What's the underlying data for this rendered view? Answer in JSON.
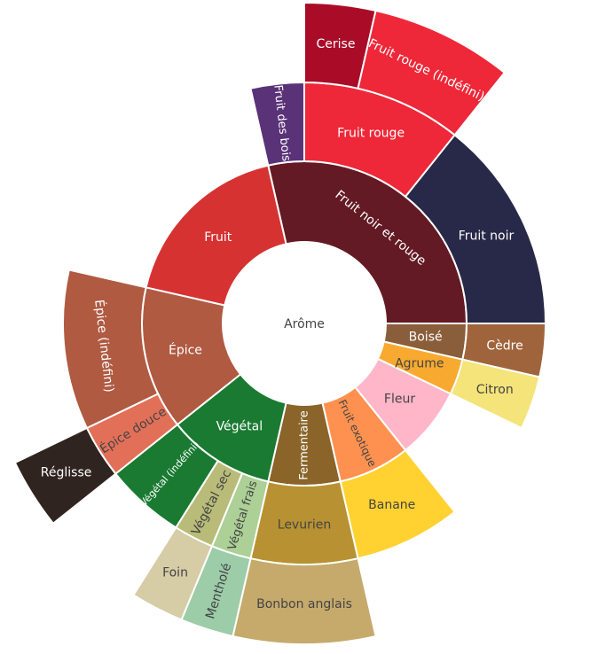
{
  "chart_data": {
    "type": "sunburst",
    "root": {
      "label": "Arôme",
      "text_color": "#444444"
    },
    "nodes": [
      {
        "label": "Fruit noir et rouge",
        "value": 8,
        "color": "#641a24",
        "text_color": "#ffffff",
        "children": [
          {
            "label": "Fruit des bois",
            "value": 1,
            "color": "#5a3278",
            "text_color": "#ffffff"
          },
          {
            "label": "Fruit rouge",
            "value": 3,
            "color": "#ee2838",
            "text_color": "#ffffff",
            "children": [
              {
                "label": "Cerise",
                "value": 1,
                "color": "#aa0c28",
                "text_color": "#ffffff"
              },
              {
                "label": "Fruit rouge (indéfini)",
                "value": 2,
                "color": "#ee2838",
                "text_color": "#ffffff"
              }
            ]
          },
          {
            "label": "Fruit noir",
            "value": 4,
            "color": "#282848",
            "text_color": "#ffffff"
          }
        ]
      },
      {
        "label": "Boisé",
        "value": 1,
        "color": "#8a5e3a",
        "text_color": "#ffffff",
        "children": [
          {
            "label": "Cèdre",
            "value": 1,
            "color": "#a0643c",
            "text_color": "#ffffff"
          }
        ]
      },
      {
        "label": "Agrume",
        "value": 1,
        "color": "#f8aa30",
        "text_color": "#444444",
        "children": [
          {
            "label": "Citron",
            "value": 1,
            "color": "#f4e47a",
            "text_color": "#444444"
          }
        ]
      },
      {
        "label": "Fleur",
        "value": 2,
        "color": "#ffb6c8",
        "text_color": "#444444"
      },
      {
        "label": "Fruit exotique",
        "value": 2,
        "color": "#ff9150",
        "text_color": "#444444",
        "children": [
          {
            "label": "Banane",
            "value": 2,
            "color": "#ffd232",
            "text_color": "#444444"
          }
        ]
      },
      {
        "label": "Fermentaire",
        "value": 2,
        "color": "#8a6428",
        "text_color": "#ffffff",
        "children": [
          {
            "label": "Levurien",
            "value": 2,
            "color": "#b89232",
            "text_color": "#444444",
            "children": [
              {
                "label": "Bonbon anglais",
                "value": 2,
                "color": "#c6aa6c",
                "text_color": "#444444"
              }
            ]
          }
        ]
      },
      {
        "label": "Végétal",
        "value": 3,
        "color": "#1a7a32",
        "text_color": "#ffffff",
        "children": [
          {
            "label": "Végétal frais",
            "value": 0.75,
            "color": "#acd096",
            "text_color": "#444444",
            "children": [
              {
                "label": "Mentholé",
                "value": 0.75,
                "color": "#9ccca8",
                "text_color": "#444444"
              }
            ]
          },
          {
            "label": "Végétal sec",
            "value": 0.75,
            "color": "#b8bc78",
            "text_color": "#444444",
            "children": [
              {
                "label": "Foin",
                "value": 0.75,
                "color": "#d6cca6",
                "text_color": "#444444"
              }
            ]
          },
          {
            "label": "Végétal (indéfini)",
            "value": 1.5,
            "color": "#1a7a32",
            "text_color": "#ffffff"
          }
        ]
      },
      {
        "label": "Épice",
        "value": 4,
        "color": "#b05a42",
        "text_color": "#ffffff",
        "children": [
          {
            "label": "Épice douce",
            "value": 1,
            "color": "#e27058",
            "text_color": "#444444",
            "children": [
              {
                "label": "Réglisse",
                "value": 1,
                "color": "#302420",
                "text_color": "#ffffff"
              }
            ]
          },
          {
            "label": "Épice (indéfini)",
            "value": 3,
            "color": "#b05a42",
            "text_color": "#ffffff"
          }
        ]
      },
      {
        "label": "Fruit",
        "value": 5,
        "color": "#d63232",
        "text_color": "#ffffff"
      }
    ]
  }
}
